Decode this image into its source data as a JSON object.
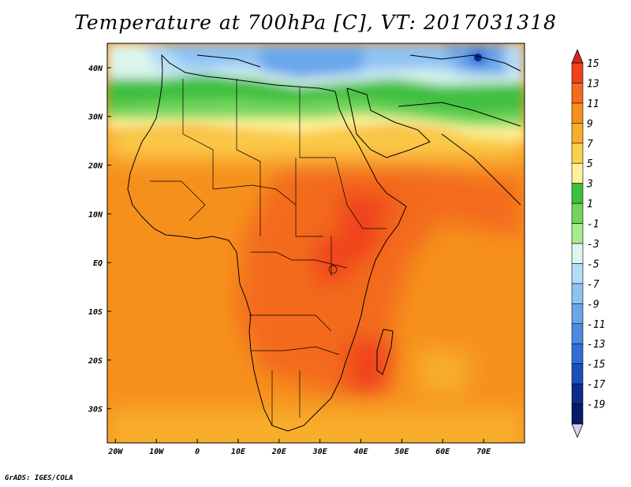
{
  "title": "Temperature at 700hPa [C], VT: 2017031318",
  "footer": "GrADS: IGES/COLA",
  "chart_data": {
    "type": "heatmap",
    "variable": "Temperature",
    "level": "700hPa",
    "units": "C",
    "valid_time": "2017031318",
    "x_ticks": [
      "20W",
      "10W",
      "0",
      "10E",
      "20E",
      "30E",
      "40E",
      "50E",
      "60E",
      "70E"
    ],
    "x_tick_values": [
      -20,
      -10,
      0,
      10,
      20,
      30,
      40,
      50,
      60,
      70
    ],
    "y_ticks": [
      "40N",
      "30N",
      "20N",
      "10N",
      "EQ",
      "10S",
      "20S",
      "30S"
    ],
    "y_tick_values": [
      40,
      30,
      20,
      10,
      0,
      -10,
      -20,
      -30
    ],
    "lon_range": [
      -22,
      80
    ],
    "lat_range": [
      -37,
      45
    ],
    "colorbar_levels": [
      "15",
      "13",
      "11",
      "9",
      "7",
      "5",
      "3",
      "1",
      "-1",
      "-3",
      "-5",
      "-7",
      "-9",
      "-11",
      "-13",
      "-15",
      "-17",
      "-19"
    ],
    "colorbar_values": [
      15,
      13,
      11,
      9,
      7,
      5,
      3,
      1,
      -1,
      -3,
      -5,
      -7,
      -9,
      -11,
      -13,
      -15,
      -17,
      -19
    ],
    "colorbar_colors": [
      "#d7261e",
      "#f0421c",
      "#f36b1f",
      "#f6901d",
      "#f8ae2a",
      "#fbd04d",
      "#fdf29a",
      "#3fbf3f",
      "#72d65d",
      "#a6ec8d",
      "#dcf6ee",
      "#b6dcf8",
      "#8ec2f3",
      "#6aa6ec",
      "#4c8be3",
      "#2f6fd8",
      "#1a50b8",
      "#0e2b8c",
      "#0a1a66",
      "#d8d0f0"
    ]
  }
}
